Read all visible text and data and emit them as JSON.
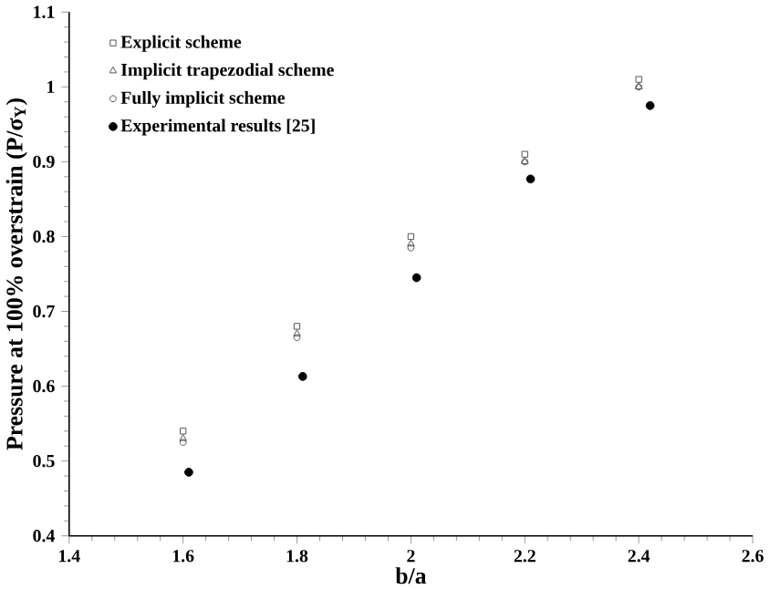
{
  "chart_data": {
    "type": "scatter",
    "xlabel": "b/a",
    "ylabel": "Pressure at 100% overstrain (P/σ$_{Y}$)",
    "xlim": [
      1.4,
      2.6
    ],
    "ylim": [
      0.4,
      1.1
    ],
    "xticks": [
      1.4,
      1.6,
      1.8,
      2,
      2.2,
      2.4,
      2.6
    ],
    "yticks": [
      0.4,
      0.5,
      0.6,
      0.7,
      0.8,
      0.9,
      1,
      1.1
    ],
    "legend": "top left",
    "grid": false,
    "series": [
      {
        "name": "Explicit scheme",
        "color": "#555555",
        "marker": "square",
        "x": [
          1.6,
          1.8,
          2.0,
          2.2,
          2.4
        ],
        "values": [
          0.54,
          0.68,
          0.8,
          0.91,
          1.01
        ]
      },
      {
        "name": "Implicit trapezodial scheme",
        "color": "#555555",
        "marker": "triangle",
        "x": [
          1.6,
          1.8,
          2.0,
          2.2,
          2.4
        ],
        "values": [
          0.53,
          0.67,
          0.79,
          0.9,
          1.0
        ]
      },
      {
        "name": "Fully implicit scheme",
        "color": "#555555",
        "marker": "circle",
        "x": [
          1.6,
          1.8,
          2.0,
          2.2,
          2.4
        ],
        "values": [
          0.525,
          0.665,
          0.785,
          0.9,
          1.0
        ]
      },
      {
        "name": "Experimental results [25]",
        "color": "#000000",
        "marker": "filled circle",
        "x": [
          1.61,
          1.81,
          2.01,
          2.21,
          2.42
        ],
        "values": [
          0.485,
          0.613,
          0.745,
          0.877,
          0.975
        ]
      }
    ]
  }
}
